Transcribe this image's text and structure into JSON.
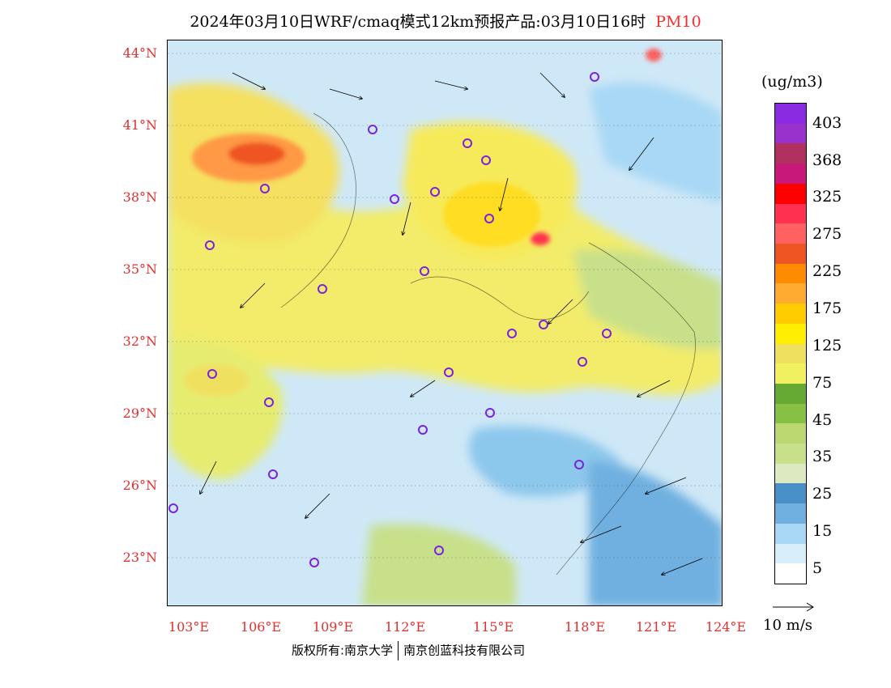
{
  "title": {
    "main": "2024年03月10日WRF/cmaq模式12km预报产品:03月10日16时",
    "variable": "PM10"
  },
  "axes": {
    "lat_labels": [
      "44°N",
      "41°N",
      "38°N",
      "35°N",
      "32°N",
      "29°N",
      "26°N",
      "23°N"
    ],
    "lon_labels": [
      "103°E",
      "106°E",
      "109°E",
      "112°E",
      "115°E",
      "118°E",
      "121°E",
      "124°E"
    ]
  },
  "colorbar": {
    "unit": "(ug/m3)",
    "labels": [
      "403",
      "368",
      "325",
      "275",
      "225",
      "175",
      "125",
      "75",
      "45",
      "35",
      "25",
      "15",
      "5"
    ],
    "colors": [
      "#8a2be2",
      "#9932cc",
      "#b03060",
      "#c8187a",
      "#ff0000",
      "#ff3050",
      "#ff6060",
      "#ee5522",
      "#ff8c00",
      "#ffaa30",
      "#ffcc00",
      "#ffee00",
      "#f0e060",
      "#f0f060",
      "#66aa33",
      "#88c044",
      "#bcd870",
      "#c8e08a",
      "#dde9c0",
      "#4a90c8",
      "#6fb0e0",
      "#a8d8f5",
      "#d8eefa",
      "#ffffff"
    ]
  },
  "wind_reference": "10 m/s",
  "footer": {
    "left": "版权所有:南京大学",
    "right": "南京创蓝科技有限公司"
  }
}
